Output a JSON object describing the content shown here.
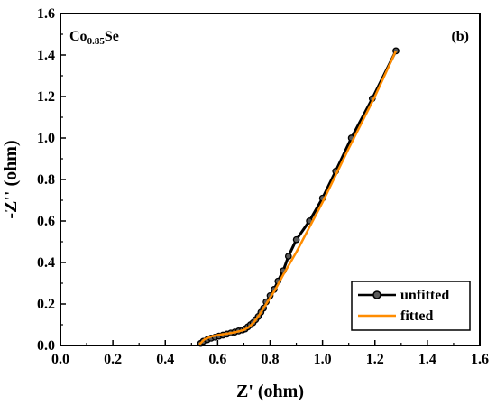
{
  "chart_data": {
    "type": "line",
    "xlabel": "Z' (ohm)",
    "ylabel": "-Z'' (ohm)",
    "xlim": [
      0.0,
      1.6
    ],
    "ylim": [
      0.0,
      1.6
    ],
    "xticks": [
      "0.0",
      "0.2",
      "0.4",
      "0.6",
      "0.8",
      "1.0",
      "1.2",
      "1.4",
      "1.6"
    ],
    "yticks": [
      "0.0",
      "0.2",
      "0.4",
      "0.6",
      "0.8",
      "1.0",
      "1.2",
      "1.4",
      "1.6"
    ],
    "annotations": {
      "sample": {
        "base": "Co",
        "subscript": "0.85",
        "suffix": "Se"
      },
      "panel": "(b)"
    },
    "legend": {
      "placement": "bottom-right"
    },
    "series": [
      {
        "name": "unfitted",
        "color": "#000000",
        "marker": "circle",
        "x": [
          0.535,
          0.545,
          0.56,
          0.575,
          0.59,
          0.605,
          0.62,
          0.635,
          0.65,
          0.665,
          0.68,
          0.695,
          0.705,
          0.715,
          0.725,
          0.735,
          0.745,
          0.755,
          0.765,
          0.775,
          0.785,
          0.8,
          0.815,
          0.83,
          0.85,
          0.87,
          0.9,
          0.95,
          1.0,
          1.05,
          1.11,
          1.19,
          1.28
        ],
        "y": [
          0.01,
          0.02,
          0.028,
          0.035,
          0.04,
          0.045,
          0.05,
          0.055,
          0.06,
          0.065,
          0.07,
          0.075,
          0.08,
          0.09,
          0.1,
          0.11,
          0.125,
          0.14,
          0.16,
          0.18,
          0.21,
          0.24,
          0.27,
          0.31,
          0.36,
          0.43,
          0.51,
          0.6,
          0.71,
          0.84,
          1.0,
          1.19,
          1.42
        ]
      },
      {
        "name": "fitted",
        "color": "#ff8c00",
        "marker": "none",
        "x": [
          0.53,
          0.55,
          0.58,
          0.61,
          0.64,
          0.67,
          0.7,
          0.72,
          0.74,
          0.76,
          0.78,
          0.8,
          0.82,
          0.85,
          0.9,
          1.0,
          1.1,
          1.2,
          1.28
        ],
        "y": [
          0.005,
          0.03,
          0.045,
          0.052,
          0.058,
          0.065,
          0.075,
          0.09,
          0.115,
          0.15,
          0.19,
          0.23,
          0.27,
          0.34,
          0.45,
          0.69,
          0.95,
          1.2,
          1.42
        ]
      }
    ]
  }
}
